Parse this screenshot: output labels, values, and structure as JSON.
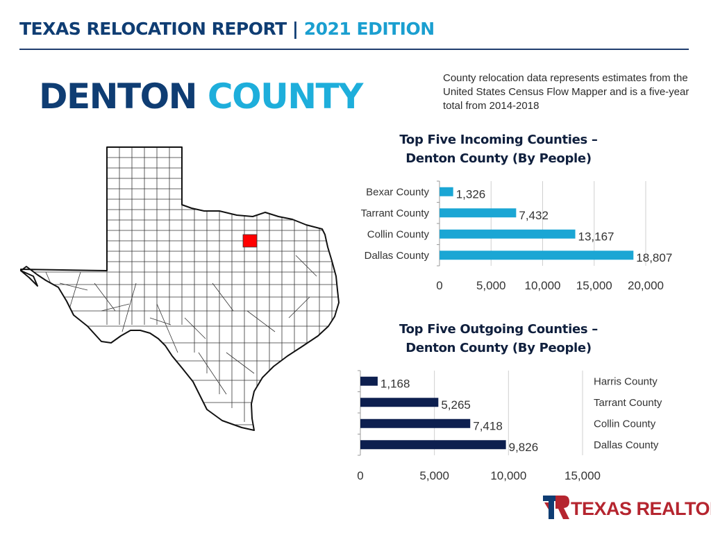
{
  "header": {
    "report_title": "TEXAS RELOCATION REPORT",
    "separator": " | ",
    "edition": "2021 EDITION"
  },
  "county": {
    "name_part1": "DENTON",
    "name_part2": "COUNTY"
  },
  "note": "County relocation data represents estimates from the United States Census Flow Mapper and is a five-year total from 2014-2018",
  "logo": {
    "text": "TEXAS REALTORS"
  },
  "colors": {
    "incoming_bar": "#1ba6d4",
    "outgoing_bar": "#0d1f4f",
    "highlight_county": "#ff0000",
    "brand_red": "#b5252f",
    "brand_navy": "#0f3d73"
  },
  "chart_data": [
    {
      "type": "bar",
      "orientation": "horizontal",
      "title_line1": "Top Five Incoming Counties –",
      "title_line2": "Denton County (By People)",
      "categories": [
        "Bexar County",
        "Tarrant County",
        "Collin County",
        "Dallas County"
      ],
      "values": [
        1326,
        7432,
        13167,
        18807
      ],
      "value_labels": [
        "1,326",
        "7,432",
        "13,167",
        "18,807"
      ],
      "xlim": [
        0,
        20000
      ],
      "ticks": [
        0,
        5000,
        10000,
        15000,
        20000
      ],
      "tick_labels": [
        "0",
        "5,000",
        "10,000",
        "15,000",
        "20,000"
      ],
      "grid": true,
      "category_labels_side": "left"
    },
    {
      "type": "bar",
      "orientation": "horizontal",
      "title_line1": "Top Five Outgoing Counties –",
      "title_line2": "Denton County (By People)",
      "categories": [
        "Harris County",
        "Tarrant County",
        "Collin County",
        "Dallas County"
      ],
      "values": [
        1168,
        5265,
        7418,
        9826
      ],
      "value_labels": [
        "1,168",
        "5,265",
        "7,418",
        "9,826"
      ],
      "xlim": [
        0,
        15000
      ],
      "ticks": [
        0,
        5000,
        10000,
        15000
      ],
      "tick_labels": [
        "0",
        "5,000",
        "10,000",
        "15,000"
      ],
      "grid": true,
      "category_labels_side": "right"
    }
  ]
}
